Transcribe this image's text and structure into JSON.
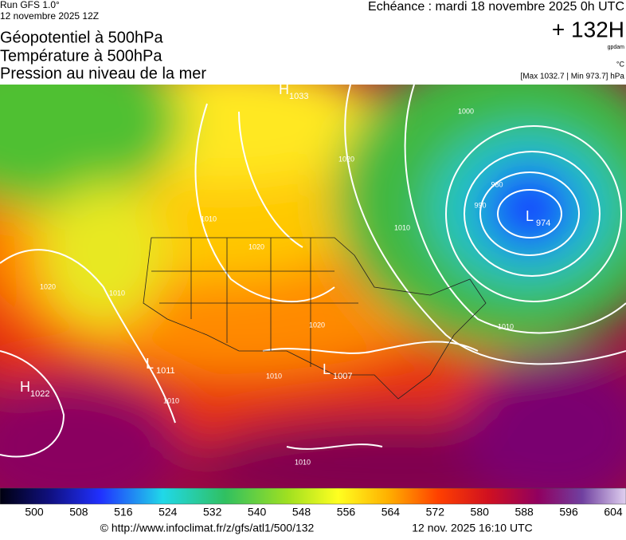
{
  "header": {
    "run": "Run GFS 1.0°",
    "date": "12 novembre 2025 12Z",
    "titles": [
      "Géopotentiel à 500hPa",
      "Température à 500hPa",
      "Pression au niveau de la mer"
    ],
    "echeance": "Echéance : mardi 18 novembre 2025 0h UTC",
    "horizon": "+ 132H",
    "unit_geo": "gpdam",
    "unit_temp": "°C",
    "range": "[Max 1032.7 | Min 973.7] hPa"
  },
  "map": {
    "centers": [
      {
        "symbol": "H",
        "value": "1033"
      },
      {
        "symbol": "L",
        "value": "974"
      },
      {
        "symbol": "H",
        "value": "1022"
      },
      {
        "symbol": "L",
        "value": "1007"
      },
      {
        "symbol": "L",
        "value": "1011"
      }
    ],
    "isobar_labels": [
      "1000",
      "990",
      "980",
      "1010",
      "1020",
      "1010",
      "1020",
      "1010",
      "1010",
      "1020",
      "1010",
      "1010",
      "1020",
      "1010"
    ]
  },
  "colorbar": {
    "ticks": [
      500,
      508,
      516,
      524,
      532,
      540,
      548,
      556,
      564,
      572,
      580,
      588,
      596,
      604
    ]
  },
  "footer": {
    "url": "© http://www.infoclimat.fr/z/gfs/atl1/500/132",
    "timestamp": "12 nov. 2025 16:10 UTC"
  }
}
